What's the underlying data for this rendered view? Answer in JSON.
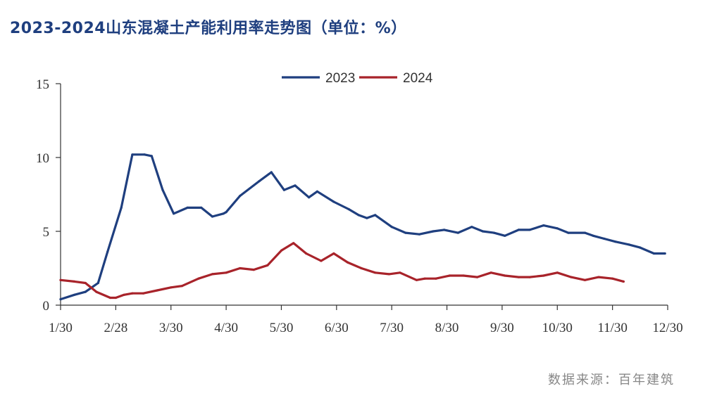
{
  "title": "2023-2024山东混凝土产能利用率走势图（单位：%）",
  "source": "数据来源：百年建筑",
  "colors": {
    "series_2023": "#1f3f7f",
    "series_2024": "#a8232a",
    "title": "#1f3f7f",
    "axis": "#333333"
  },
  "chart_data": {
    "type": "line",
    "title": "2023-2024山东混凝土产能利用率走势图（单位：%）",
    "xlabel": "",
    "ylabel": "",
    "ylim": [
      0,
      15
    ],
    "yticks": [
      0,
      5,
      10,
      15
    ],
    "xlim": [
      0,
      11
    ],
    "xticks": [
      "1/30",
      "2/28",
      "3/30",
      "4/30",
      "5/30",
      "6/30",
      "7/30",
      "8/30",
      "9/30",
      "10/30",
      "11/30",
      "12/30"
    ],
    "grid": false,
    "legend_position": "top-center",
    "series": [
      {
        "name": "2023",
        "x": [
          0,
          0.25,
          0.45,
          0.68,
          0.85,
          1.1,
          1.3,
          1.52,
          1.65,
          1.85,
          2.05,
          2.3,
          2.55,
          2.75,
          2.95,
          3.0,
          3.25,
          3.6,
          3.82,
          4.05,
          4.25,
          4.5,
          4.65,
          4.95,
          5.22,
          5.4,
          5.55,
          5.7,
          6.0,
          6.25,
          6.5,
          6.75,
          6.95,
          7.2,
          7.45,
          7.65,
          7.85,
          8.05,
          8.3,
          8.5,
          8.75,
          9.0,
          9.2,
          9.5,
          9.65,
          9.85,
          10.05,
          10.3,
          10.5,
          10.75,
          10.95
        ],
        "values": [
          0.4,
          0.7,
          0.9,
          1.5,
          3.6,
          6.6,
          10.2,
          10.2,
          10.1,
          7.8,
          6.2,
          6.6,
          6.6,
          6.0,
          6.2,
          6.3,
          7.4,
          8.4,
          9.0,
          7.8,
          8.1,
          7.3,
          7.7,
          7.0,
          6.5,
          6.1,
          5.9,
          6.1,
          5.3,
          4.9,
          4.8,
          5.0,
          5.1,
          4.9,
          5.3,
          5.0,
          4.9,
          4.7,
          5.1,
          5.1,
          5.4,
          5.2,
          4.9,
          4.9,
          4.7,
          4.5,
          4.3,
          4.1,
          3.9,
          3.5,
          3.5
        ]
      },
      {
        "name": "2024",
        "x": [
          0,
          0.25,
          0.45,
          0.65,
          0.9,
          1.0,
          1.15,
          1.3,
          1.5,
          1.75,
          2.0,
          2.2,
          2.5,
          2.75,
          3.0,
          3.25,
          3.5,
          3.75,
          4.0,
          4.22,
          4.45,
          4.72,
          4.95,
          5.2,
          5.45,
          5.7,
          5.95,
          6.15,
          6.45,
          6.6,
          6.8,
          7.05,
          7.3,
          7.55,
          7.8,
          8.05,
          8.3,
          8.5,
          8.75,
          9.0,
          9.25,
          9.5,
          9.75,
          10.0,
          10.2
        ],
        "values": [
          1.7,
          1.6,
          1.5,
          0.9,
          0.5,
          0.5,
          0.7,
          0.8,
          0.8,
          1.0,
          1.2,
          1.3,
          1.8,
          2.1,
          2.2,
          2.5,
          2.4,
          2.7,
          3.7,
          4.2,
          3.5,
          3.0,
          3.5,
          2.9,
          2.5,
          2.2,
          2.1,
          2.2,
          1.7,
          1.8,
          1.8,
          2.0,
          2.0,
          1.9,
          2.2,
          2.0,
          1.9,
          1.9,
          2.0,
          2.2,
          1.9,
          1.7,
          1.9,
          1.8,
          1.6
        ]
      }
    ]
  }
}
